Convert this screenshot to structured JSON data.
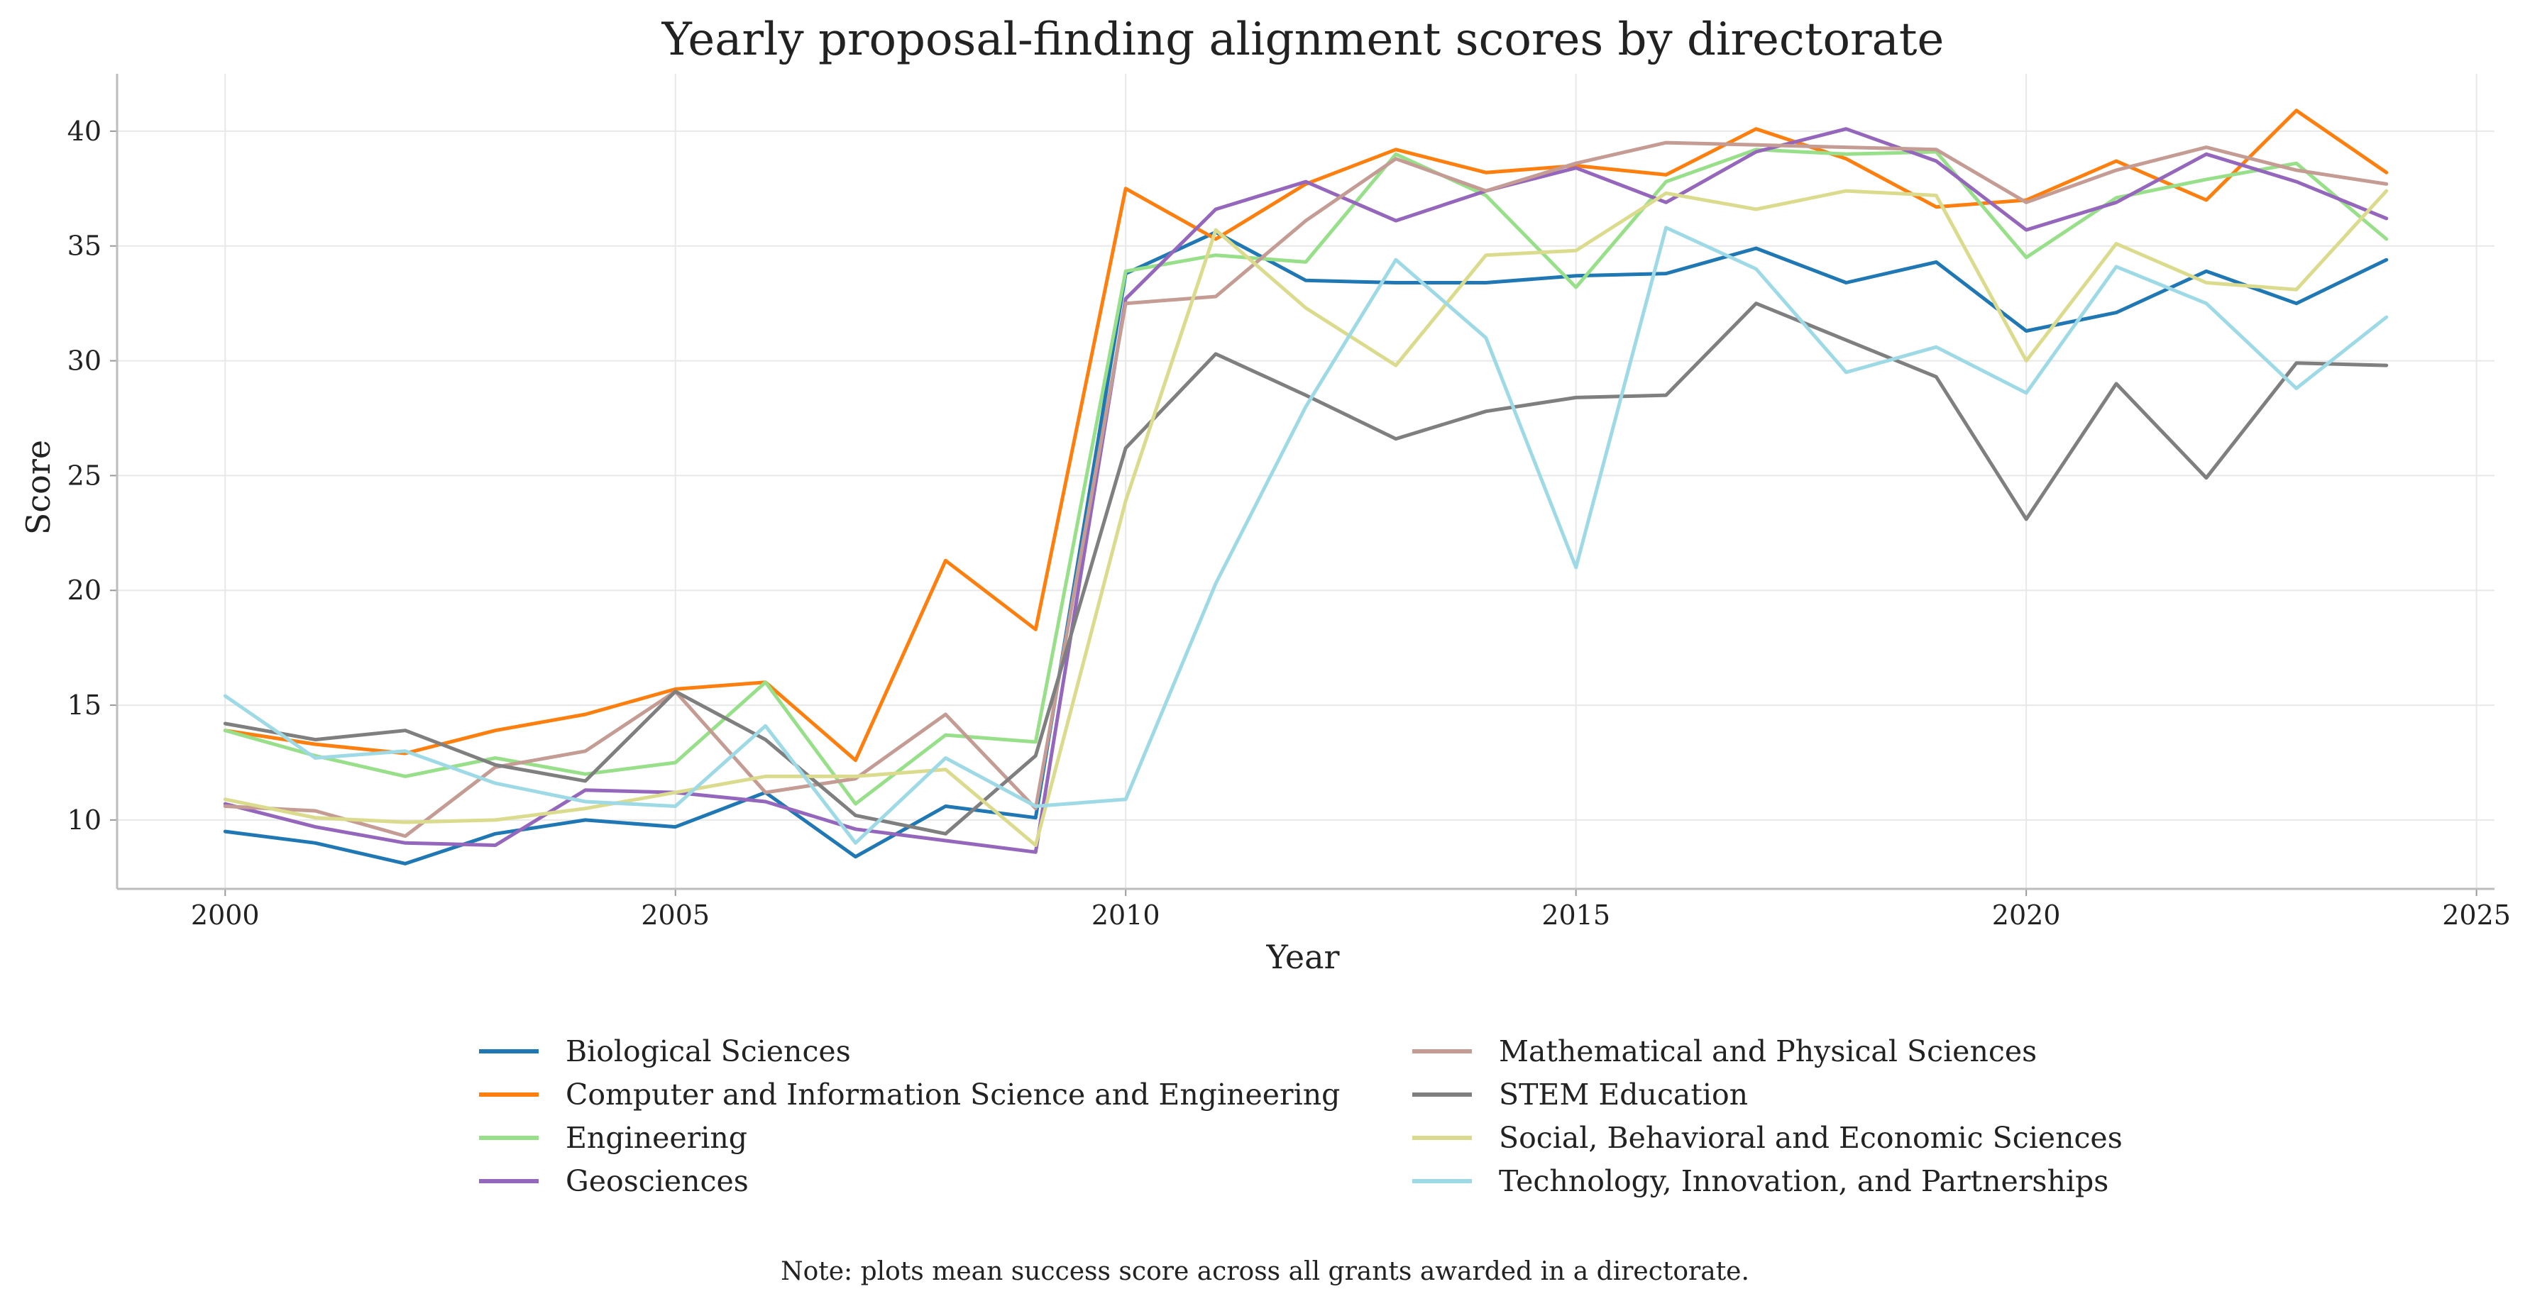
{
  "chart_data": {
    "type": "line",
    "title": "Yearly proposal-finding alignment scores by directorate",
    "xlabel": "Year",
    "ylabel": "Score",
    "xlim": [
      1998.8,
      2025.2
    ],
    "ylim": [
      7.0,
      42.5
    ],
    "xticks": [
      2000,
      2005,
      2010,
      2015,
      2020,
      2025
    ],
    "yticks": [
      10,
      15,
      20,
      25,
      30,
      35,
      40
    ],
    "grid": true,
    "legend_position": "bottom-center",
    "x": [
      2000,
      2001,
      2002,
      2003,
      2004,
      2005,
      2006,
      2007,
      2008,
      2009,
      2010,
      2011,
      2012,
      2013,
      2014,
      2015,
      2016,
      2017,
      2018,
      2019,
      2020,
      2021,
      2022,
      2023,
      2024
    ],
    "series": [
      {
        "name": "Biological Sciences",
        "color": "#1f77b4",
        "values": [
          9.5,
          9.0,
          8.1,
          9.4,
          10.0,
          9.7,
          11.2,
          8.4,
          10.6,
          10.1,
          33.8,
          35.6,
          33.5,
          33.4,
          33.4,
          33.7,
          33.8,
          34.9,
          33.4,
          34.3,
          31.3,
          32.1,
          33.9,
          32.5,
          34.4
        ]
      },
      {
        "name": "Computer and Information Science and Engineering",
        "color": "#ff7f0e",
        "values": [
          13.9,
          13.3,
          12.9,
          13.9,
          14.6,
          15.7,
          16.0,
          12.6,
          21.3,
          18.3,
          37.5,
          35.3,
          37.7,
          39.2,
          38.2,
          38.5,
          38.1,
          40.1,
          38.8,
          36.7,
          37.0,
          38.7,
          37.0,
          40.9,
          38.2
        ]
      },
      {
        "name": "Engineering",
        "color": "#98df8a",
        "values": [
          13.9,
          12.8,
          11.9,
          12.7,
          12.0,
          12.5,
          16.0,
          10.7,
          13.7,
          13.4,
          33.9,
          34.6,
          34.3,
          39.0,
          37.2,
          33.2,
          37.8,
          39.2,
          39.0,
          39.1,
          34.5,
          37.1,
          37.9,
          38.6,
          35.3
        ]
      },
      {
        "name": "Geosciences",
        "color": "#9467bd",
        "values": [
          10.7,
          9.7,
          9.0,
          8.9,
          11.3,
          11.2,
          10.8,
          9.6,
          9.1,
          8.6,
          32.7,
          36.6,
          37.8,
          36.1,
          37.4,
          38.4,
          36.9,
          39.1,
          40.1,
          38.7,
          35.7,
          36.9,
          39.0,
          37.8,
          36.2
        ]
      },
      {
        "name": "Mathematical and Physical Sciences",
        "color": "#c49c94",
        "values": [
          10.6,
          10.4,
          9.3,
          12.3,
          13.0,
          15.6,
          11.2,
          11.8,
          14.6,
          10.5,
          32.5,
          32.8,
          36.1,
          38.8,
          37.4,
          38.6,
          39.5,
          39.4,
          39.3,
          39.2,
          36.9,
          38.3,
          39.3,
          38.3,
          37.7
        ]
      },
      {
        "name": "STEM Education",
        "color": "#7f7f7f",
        "values": [
          14.2,
          13.5,
          13.9,
          12.4,
          11.7,
          15.6,
          13.5,
          10.2,
          9.4,
          12.8,
          26.2,
          30.3,
          28.5,
          26.6,
          27.8,
          28.4,
          28.5,
          32.5,
          30.9,
          29.3,
          23.1,
          29.0,
          24.9,
          29.9,
          29.8
        ]
      },
      {
        "name": "Social, Behavioral and Economic Sciences",
        "color": "#dbdb8d",
        "values": [
          10.9,
          10.1,
          9.9,
          10.0,
          10.5,
          11.2,
          11.9,
          11.9,
          12.2,
          8.9,
          23.9,
          35.7,
          32.3,
          29.8,
          34.6,
          34.8,
          37.3,
          36.6,
          37.4,
          37.2,
          30.0,
          35.1,
          33.4,
          33.1,
          37.4
        ]
      },
      {
        "name": "Technology, Innovation, and Partnerships",
        "color": "#9edae5",
        "values": [
          15.4,
          12.7,
          13.0,
          11.6,
          10.8,
          10.6,
          14.1,
          9.0,
          12.7,
          10.6,
          10.9,
          20.3,
          28.0,
          34.4,
          31.0,
          21.0,
          35.8,
          34.0,
          29.5,
          30.6,
          28.6,
          34.1,
          32.5,
          28.8,
          31.9
        ]
      }
    ]
  },
  "note": "Note: plots mean success score across all grants awarded in a directorate."
}
